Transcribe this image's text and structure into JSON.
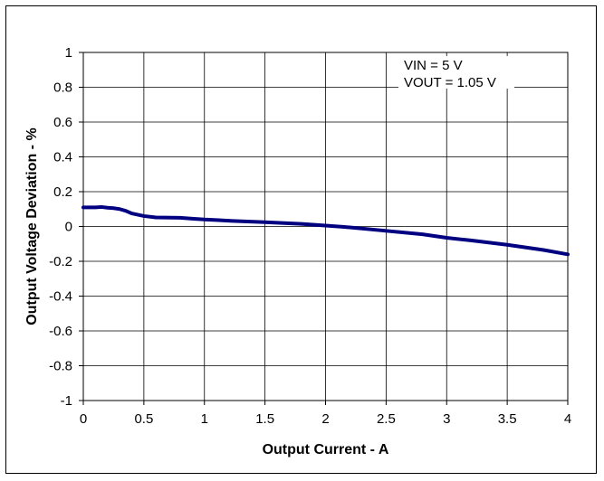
{
  "chart_data": {
    "type": "line",
    "title": "",
    "xlabel": "Output Current - A",
    "ylabel": "Output Voltage Deviation - %",
    "xlim": [
      0,
      4
    ],
    "ylim": [
      -1,
      1
    ],
    "x_ticks": [
      "0",
      "0.5",
      "1",
      "1.5",
      "2",
      "2.5",
      "3",
      "3.5",
      "4"
    ],
    "y_ticks": [
      "1",
      "0.8",
      "0.6",
      "0.4",
      "0.2",
      "0",
      "-0.2",
      "-0.4",
      "-0.6",
      "-0.8",
      "-1"
    ],
    "grid": true,
    "annotations": [
      "VIN = 5 V",
      "VOUT = 1.05 V"
    ],
    "series_color": "#000080",
    "series": [
      {
        "x": [
          0,
          0.1,
          0.15,
          0.2,
          0.25,
          0.3,
          0.35,
          0.4,
          0.5,
          0.6,
          0.8,
          0.9,
          1.0,
          1.1,
          1.2,
          1.5,
          1.8,
          2.0,
          2.2,
          2.5,
          2.8,
          3.0,
          3.2,
          3.5,
          3.8,
          4.0
        ],
        "y": [
          0.11,
          0.11,
          0.112,
          0.108,
          0.105,
          0.1,
          0.09,
          0.075,
          0.06,
          0.052,
          0.05,
          0.045,
          0.04,
          0.037,
          0.033,
          0.025,
          0.015,
          0.005,
          -0.005,
          -0.025,
          -0.045,
          -0.065,
          -0.08,
          -0.105,
          -0.135,
          -0.16
        ]
      }
    ]
  }
}
